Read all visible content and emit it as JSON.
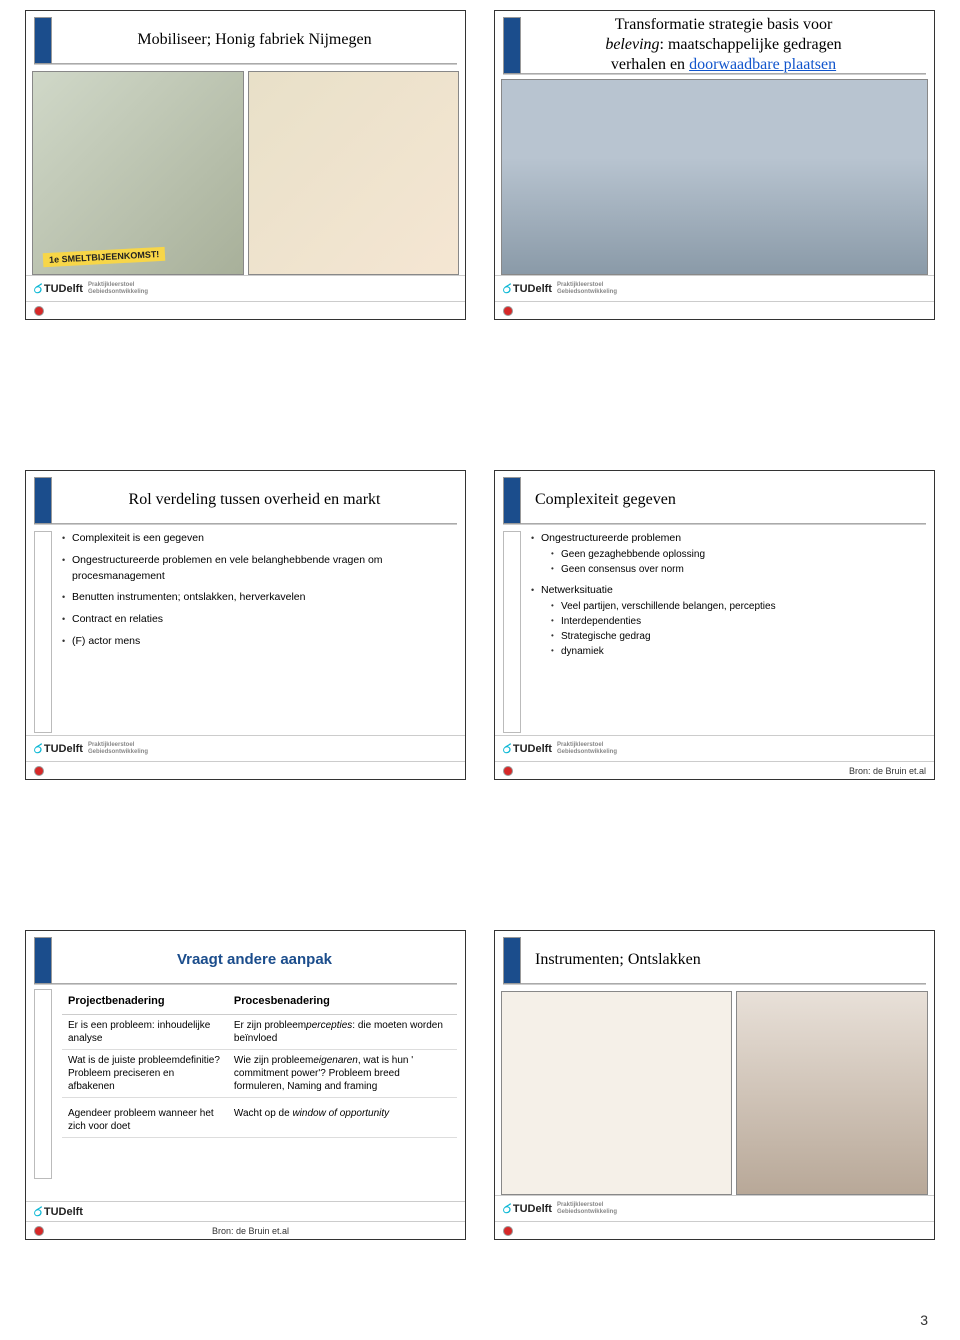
{
  "page_number": "3",
  "colors": {
    "accent_blue": "#1b4d8c",
    "link_blue": "#1155cc",
    "red_dot": "#d62828",
    "banner_yellow": "#f7d648",
    "text": "#000000"
  },
  "logo": {
    "name": "TUDelft",
    "sub1": "Praktijkleerstoel",
    "sub2": "Gebiedsontwikkeling"
  },
  "slides": {
    "s1": {
      "title": "Mobiliseer; Honig fabriek Nijmegen",
      "banner": "1e SMELTBIJEENKOMST!"
    },
    "s2": {
      "title_l1": "Transformatie strategie basis voor",
      "title_l2_em": "beleving",
      "title_l2_rest": ": maatschappelijke gedragen",
      "title_l3_a": "verhalen en ",
      "title_l3_link": "doorwaadbare plaatsen"
    },
    "s3": {
      "title": "Rol verdeling tussen overheid en markt",
      "bullets": [
        "Complexiteit is een gegeven",
        "Ongestructureerde problemen en vele belanghebbende vragen om procesmanagement",
        "Benutten instrumenten; ontslakken, herverkavelen",
        "Contract en relaties",
        "(F) actor mens"
      ]
    },
    "s4": {
      "title": "Complexiteit gegeven",
      "b1": "Ongestructureerde problemen",
      "b1_sub": [
        "Geen gezaghebbende oplossing",
        "Geen consensus over norm"
      ],
      "b2": "Netwerksituatie",
      "b2_sub": [
        "Veel partijen, verschillende belangen, percepties",
        "Interdependenties",
        "Strategische gedrag",
        "dynamiek"
      ],
      "source": "Bron: de Bruin et.al"
    },
    "s5": {
      "title": "Vraagt andere aanpak",
      "col1": "Projectbenadering",
      "col2": "Procesbenadering",
      "rows": [
        [
          "Er is een probleem: inhoudelijke analyse",
          "Er zijn probleem<em>percepties</em>: die moeten worden beïnvloed"
        ],
        [
          "Wat is de juiste probleemdefinitie? Probleem preciseren en afbakenen",
          "Wie zijn probleem<em>eigenaren</em>, wat is hun ' commitment power'? Probleem breed formuleren, Naming and framing"
        ],
        [
          "Agendeer probleem wanneer het zich voor doet",
          "Wacht op de <em>window of opportunity</em>"
        ]
      ],
      "source": "Bron: de Bruin et.al"
    },
    "s6": {
      "title": "Instrumenten; Ontslakken"
    }
  }
}
